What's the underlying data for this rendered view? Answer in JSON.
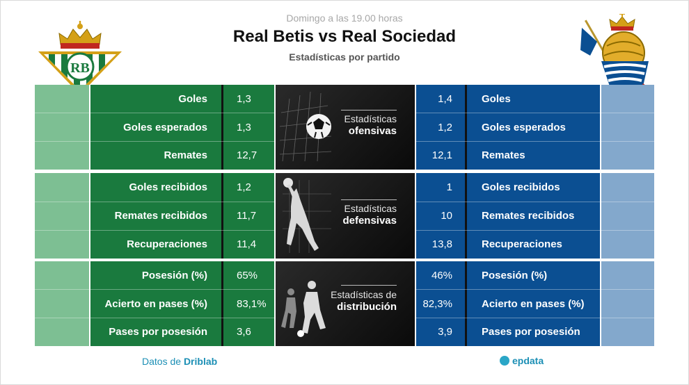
{
  "header": {
    "datetime": "Domingo a las 19.00 horas",
    "title": "Real Betis vs Real Sociedad",
    "subtitle": "Estadísticas por partido"
  },
  "teams": {
    "left": {
      "name": "Real Betis",
      "primary_color": "#1a7a3e",
      "light_color": "#7dbf93"
    },
    "right": {
      "name": "Real Sociedad",
      "primary_color": "#0b4f92",
      "light_color": "#83a8cc"
    }
  },
  "sections": [
    {
      "panel_line1": "Estadísticas",
      "panel_line2": "ofensivas",
      "panel_icon": "soccer-ball-in-net-icon",
      "rows": [
        {
          "label": "Goles",
          "left": "1,3",
          "right": "1,4"
        },
        {
          "label": "Goles esperados",
          "left": "1,3",
          "right": "1,2"
        },
        {
          "label": "Remates",
          "left": "12,7",
          "right": "12,1"
        }
      ]
    },
    {
      "panel_line1": "Estadísticas",
      "panel_line2": "defensivas",
      "panel_icon": "goalkeeper-icon",
      "rows": [
        {
          "label": "Goles recibidos",
          "left": "1,2",
          "right": "1"
        },
        {
          "label": "Remates recibidos",
          "left": "11,7",
          "right": "10"
        },
        {
          "label": "Recuperaciones",
          "left": "11,4",
          "right": "13,8"
        }
      ]
    },
    {
      "panel_line1": "Estadísticas de",
      "panel_line2": "distribución",
      "panel_icon": "players-icon",
      "rows": [
        {
          "label": "Posesión (%)",
          "left": "65%",
          "right": "46%"
        },
        {
          "label": "Acierto en pases (%)",
          "left": "83,1%",
          "right": "82,3%"
        },
        {
          "label": "Pases por posesión",
          "left": "3,6",
          "right": "3,9"
        }
      ]
    }
  ],
  "footer": {
    "source_prefix": "Datos de ",
    "source_name": "Driblab",
    "brand": "epdata"
  }
}
